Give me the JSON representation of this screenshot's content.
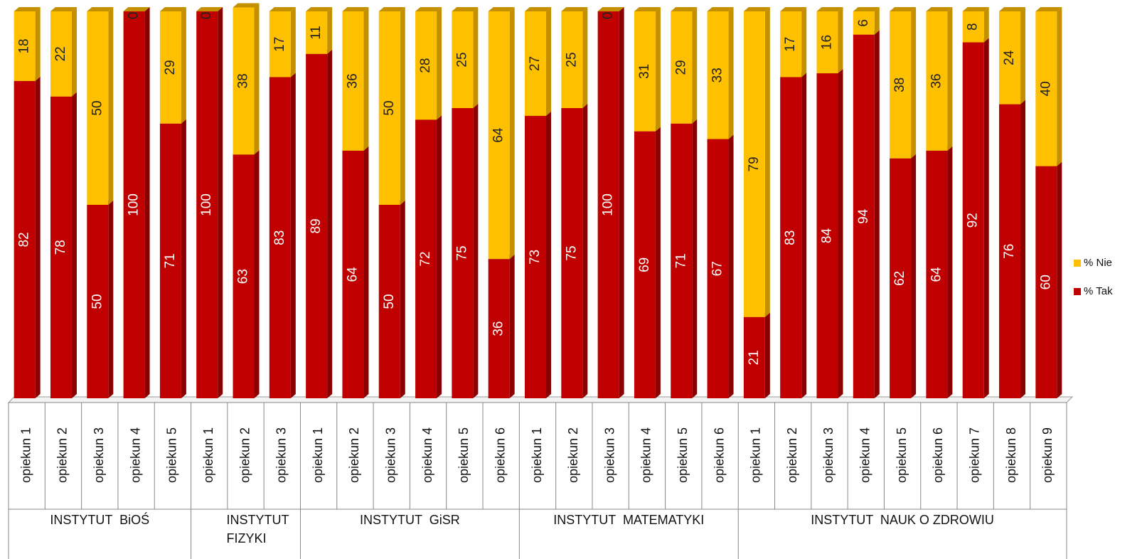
{
  "chart_data": {
    "type": "stacked-bar-3d",
    "groups": [
      {
        "name": "INSTYTUT  BiOŚ",
        "categories": [
          "opiekun 1",
          "opiekun 2",
          "opiekun 3",
          "opiekun 4",
          "opiekun 5"
        ]
      },
      {
        "name": "INSTYTUT FIZYKI",
        "categories": [
          "opiekun 1",
          "opiekun 2",
          "opiekun 3"
        ]
      },
      {
        "name": "INSTYTUT  GiSR",
        "categories": [
          "opiekun 1",
          "opiekun 2",
          "opiekun 3",
          "opiekun 4",
          "opiekun 5",
          "opiekun 6"
        ]
      },
      {
        "name": "INSTYTUT  MATEMATYKI",
        "categories": [
          "opiekun 1",
          "opiekun 2",
          "opiekun 3",
          "opiekun 4",
          "opiekun 5",
          "opiekun 6"
        ]
      },
      {
        "name": "INSTYTUT  NAUK O ZDROWIU",
        "categories": [
          "opiekun 1",
          "opiekun 2",
          "opiekun 3",
          "opiekun 4",
          "opiekun 5",
          "opiekun 6",
          "opiekun 7",
          "opiekun 8",
          "opiekun 9"
        ]
      }
    ],
    "series": [
      {
        "name": "% Tak",
        "color": "#c00000",
        "side": "#8a0000",
        "label_color": "#ffffff",
        "values": [
          82,
          78,
          50,
          100,
          71,
          100,
          63,
          83,
          89,
          64,
          50,
          72,
          75,
          36,
          73,
          75,
          100,
          69,
          71,
          67,
          21,
          83,
          84,
          94,
          62,
          64,
          92,
          76,
          60
        ]
      },
      {
        "name": "% Nie",
        "color": "#ffc000",
        "side": "#c49000",
        "label_color": "#222222",
        "values": [
          18,
          22,
          50,
          0,
          29,
          0,
          38,
          17,
          11,
          36,
          50,
          28,
          25,
          64,
          27,
          25,
          0,
          31,
          29,
          33,
          79,
          17,
          16,
          6,
          38,
          36,
          8,
          24,
          40
        ]
      }
    ],
    "ylim": [
      0,
      100
    ],
    "legend": "right"
  }
}
